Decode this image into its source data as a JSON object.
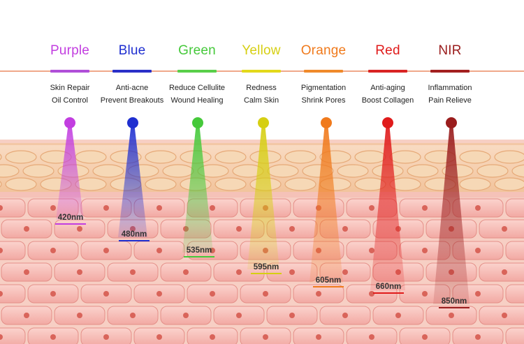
{
  "lights": [
    {
      "name": "Purple",
      "color": "#c23ee0",
      "line": "#b04fd8",
      "benefits": [
        "Skin Repair",
        "Oil Control"
      ],
      "wavelength": "420nm"
    },
    {
      "name": "Blue",
      "color": "#1f2fd0",
      "line": "#2a2fc8",
      "benefits": [
        "Anti-acne",
        "Prevent Breakouts"
      ],
      "wavelength": "480nm"
    },
    {
      "name": "Green",
      "color": "#45c93a",
      "line": "#59cf4a",
      "benefits": [
        "Reduce Cellulite",
        "Wound Healing"
      ],
      "wavelength": "535nm"
    },
    {
      "name": "Yellow",
      "color": "#d6cf12",
      "line": "#e3d91a",
      "benefits": [
        "Redness",
        "Calm Skin"
      ],
      "wavelength": "595nm"
    },
    {
      "name": "Orange",
      "color": "#f07a1c",
      "line": "#f08a2a",
      "benefits": [
        "Pigmentation",
        "Shrink Pores"
      ],
      "wavelength": "605nm"
    },
    {
      "name": "Red",
      "color": "#e01b1b",
      "line": "#d92424",
      "benefits": [
        "Anti-aging",
        "Boost Collagen"
      ],
      "wavelength": "660nm"
    },
    {
      "name": "NIR",
      "color": "#9a1d1d",
      "line": "#a32020",
      "benefits": [
        "Inflammation",
        "Pain Relieve"
      ],
      "wavelength": "850nm"
    }
  ]
}
